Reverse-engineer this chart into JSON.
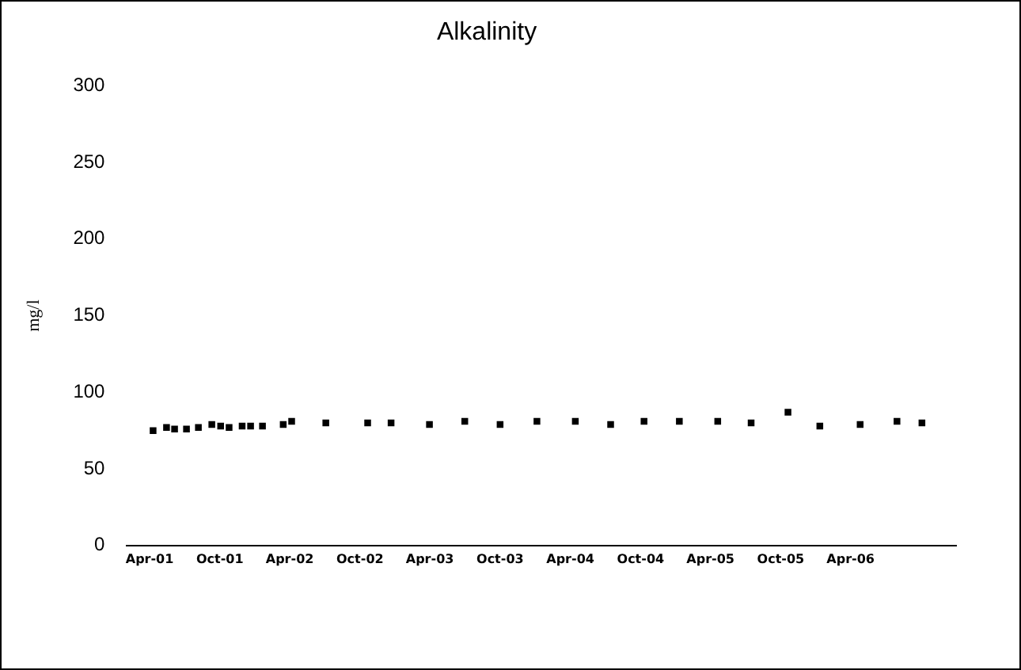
{
  "chart_data": {
    "type": "scatter",
    "title": "Alkalinity",
    "ylabel": "mg/l",
    "x": [
      "2001-04-10",
      "2001-05-15",
      "2001-06-05",
      "2001-07-06",
      "2001-08-06",
      "2001-09-10",
      "2001-10-03",
      "2001-10-25",
      "2001-11-28",
      "2001-12-20",
      "2002-01-20",
      "2002-03-15",
      "2002-04-06",
      "2002-07-04",
      "2002-10-21",
      "2002-12-21",
      "2003-03-31",
      "2003-07-01",
      "2003-10-01",
      "2004-01-05",
      "2004-04-14",
      "2004-07-15",
      "2004-10-10",
      "2005-01-10",
      "2005-04-20",
      "2005-07-16",
      "2005-10-20",
      "2006-01-11",
      "2006-04-26",
      "2006-07-31",
      "2006-10-04"
    ],
    "values": [
      75,
      77,
      76,
      76,
      77,
      79,
      78,
      77,
      78,
      78,
      78,
      79,
      81,
      80,
      80,
      80,
      79,
      81,
      79,
      81,
      81,
      79,
      81,
      81,
      81,
      80,
      87,
      78,
      79,
      81,
      80
    ],
    "color": "#000000",
    "marker": "square",
    "grid": false,
    "legend": false,
    "ylim": [
      0,
      300
    ],
    "yticks": [
      0,
      50,
      100,
      150,
      200,
      250,
      300
    ],
    "xlim": [
      "2001-02-01",
      "2007-01-01"
    ],
    "xticks": [
      {
        "value": "2001-04-01",
        "label": "Apr-01"
      },
      {
        "value": "2001-10-01",
        "label": "Oct-01"
      },
      {
        "value": "2002-04-01",
        "label": "Apr-02"
      },
      {
        "value": "2002-10-01",
        "label": "Oct-02"
      },
      {
        "value": "2003-04-01",
        "label": "Apr-03"
      },
      {
        "value": "2003-10-01",
        "label": "Oct-03"
      },
      {
        "value": "2004-04-01",
        "label": "Apr-04"
      },
      {
        "value": "2004-10-01",
        "label": "Oct-04"
      },
      {
        "value": "2005-04-01",
        "label": "Apr-05"
      },
      {
        "value": "2005-10-01",
        "label": "Oct-05"
      },
      {
        "value": "2006-04-01",
        "label": "Apr-06"
      }
    ]
  }
}
